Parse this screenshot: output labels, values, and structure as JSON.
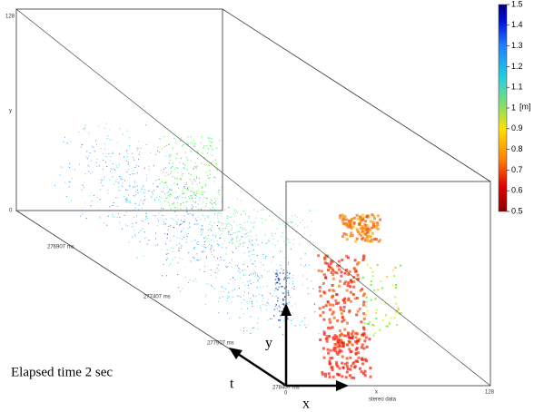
{
  "plot": {
    "back_axis": {
      "top_label": "128",
      "axis_label": "y",
      "bottom_label": "0"
    },
    "time_labels": [
      "276907 ms",
      "277407 ms",
      "277907 ms",
      "278407 ms"
    ],
    "front_axis": {
      "start_label": "0",
      "axis_label": "x",
      "title": "stereo data",
      "end_label": "128"
    },
    "arrows": {
      "y": "y",
      "x": "x",
      "t": "t"
    },
    "caption": "Elapsed time 2 sec"
  },
  "colorbar": {
    "range": [
      0.5,
      1.5
    ],
    "ticks": [
      1.5,
      1.4,
      1.3,
      1.2,
      1.1,
      1,
      0.9,
      0.8,
      0.7,
      0.6,
      0.5
    ],
    "unit": "[m]"
  }
}
